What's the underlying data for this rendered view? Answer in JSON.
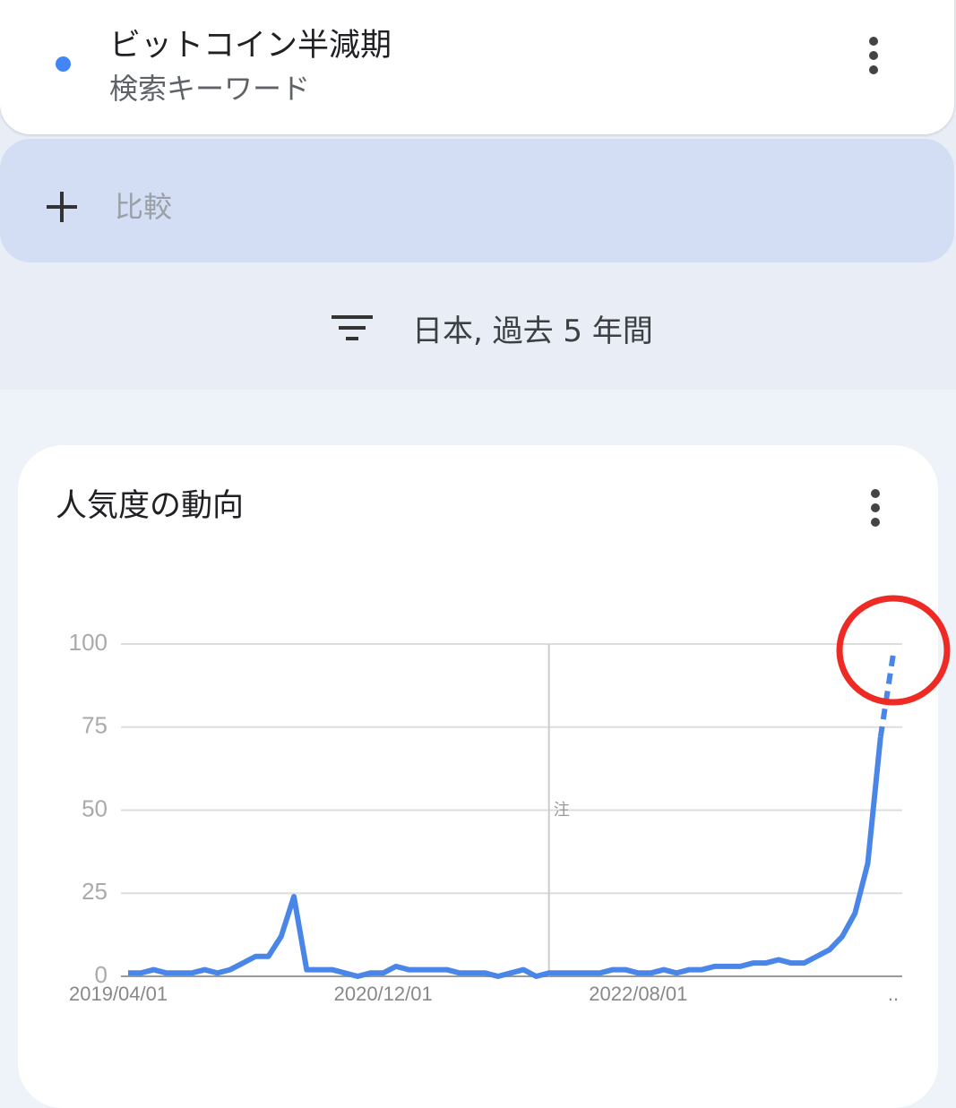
{
  "header": {
    "term": "ビットコイン半減期",
    "subtitle": "検索キーワード"
  },
  "compare": {
    "label": "比較"
  },
  "filter": {
    "label": "日本, 過去 5 年間"
  },
  "chart_data": {
    "type": "line",
    "title": "人気度の動向",
    "x": [
      "2019/04/01",
      "2019/05/01",
      "2019/06/01",
      "2019/07/01",
      "2019/08/01",
      "2019/09/01",
      "2019/10/01",
      "2019/11/01",
      "2019/12/01",
      "2020/01/01",
      "2020/02/01",
      "2020/03/01",
      "2020/04/01",
      "2020/05/01",
      "2020/06/01",
      "2020/07/01",
      "2020/08/01",
      "2020/09/01",
      "2020/10/01",
      "2020/11/01",
      "2020/12/01",
      "2021/01/01",
      "2021/02/01",
      "2021/03/01",
      "2021/04/01",
      "2021/05/01",
      "2021/06/01",
      "2021/07/01",
      "2021/08/01",
      "2021/09/01",
      "2021/10/01",
      "2021/11/01",
      "2021/12/01",
      "2022/01/01",
      "2022/02/01",
      "2022/03/01",
      "2022/04/01",
      "2022/05/01",
      "2022/06/01",
      "2022/07/01",
      "2022/08/01",
      "2022/09/01",
      "2022/10/01",
      "2022/11/01",
      "2022/12/01",
      "2023/01/01",
      "2023/02/01",
      "2023/03/01",
      "2023/04/01",
      "2023/05/01",
      "2023/06/01",
      "2023/07/01",
      "2023/08/01",
      "2023/09/01",
      "2023/10/01",
      "2023/11/01",
      "2023/12/01",
      "2024/01/01",
      "2024/02/01",
      "2024/03/01",
      "2024/04/01"
    ],
    "series": [
      {
        "color": "#4a86e8",
        "values": [
          1,
          1,
          2,
          1,
          1,
          1,
          2,
          1,
          2,
          4,
          6,
          6,
          12,
          24,
          2,
          2,
          2,
          1,
          0,
          1,
          1,
          3,
          2,
          2,
          2,
          2,
          1,
          1,
          1,
          0,
          1,
          2,
          0,
          1,
          1,
          1,
          1,
          1,
          2,
          2,
          1,
          1,
          2,
          1,
          2,
          2,
          3,
          3,
          3,
          4,
          4,
          5,
          4,
          4,
          6,
          8,
          12,
          19,
          34,
          72,
          97
        ]
      }
    ],
    "partial_last_point": true,
    "xticks": [
      "2019/04/01",
      "2020/12/01",
      "2022/08/01",
      ".."
    ],
    "ylim": [
      0,
      100
    ],
    "yticks": [
      0,
      25,
      50,
      75,
      100
    ],
    "grid": true,
    "annotations": [
      {
        "x": "2022/01/01",
        "label": "注"
      }
    ]
  }
}
